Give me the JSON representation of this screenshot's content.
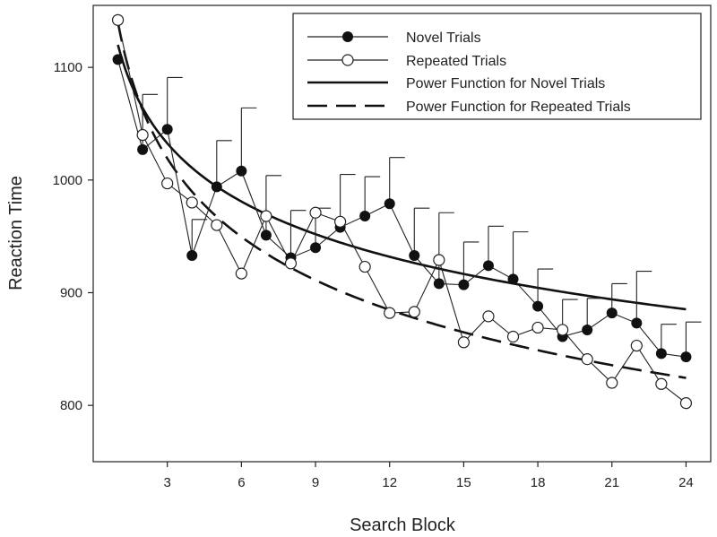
{
  "chart_data": {
    "type": "line",
    "title": "",
    "xlabel": "Search Block",
    "ylabel": "Reaction Time",
    "xlim": [
      0,
      25
    ],
    "ylim": [
      750,
      1155
    ],
    "xticks": [
      3,
      6,
      9,
      12,
      15,
      18,
      21,
      24
    ],
    "yticks": [
      800,
      900,
      1000,
      1100
    ],
    "grid": false,
    "legend_position": "top-right",
    "x": [
      1,
      2,
      3,
      4,
      5,
      6,
      7,
      8,
      9,
      10,
      11,
      12,
      13,
      14,
      15,
      16,
      17,
      18,
      19,
      20,
      21,
      22,
      23,
      24
    ],
    "series": [
      {
        "name": "Novel Trials",
        "marker": "filled-circle",
        "color": "#111111",
        "values": [
          1107,
          1027,
          1045,
          933,
          994,
          1008,
          951,
          931,
          940,
          958,
          968,
          979,
          933,
          908,
          907,
          924,
          912,
          888,
          861,
          867,
          882,
          873,
          846,
          843
        ],
        "error": [
          0,
          49,
          46,
          32,
          41,
          56,
          53,
          42,
          35,
          47,
          35,
          41,
          42,
          63,
          38,
          35,
          42,
          33,
          33,
          28,
          26,
          46,
          26,
          31
        ]
      },
      {
        "name": "Repeated Trials",
        "marker": "open-circle",
        "color": "#111111",
        "values": [
          1142,
          1040,
          997,
          980,
          960,
          917,
          968,
          926,
          971,
          963,
          923,
          882,
          883,
          929,
          856,
          879,
          861,
          869,
          867,
          841,
          820,
          853,
          819,
          802
        ]
      },
      {
        "name": "Power Function for Novel Trials",
        "line": "solid",
        "equation": "y = 1120 * x^-0.074"
      },
      {
        "name": "Power Function for Repeated Trials",
        "line": "dashed",
        "equation": "y = 1140 * x^-0.102"
      }
    ]
  }
}
